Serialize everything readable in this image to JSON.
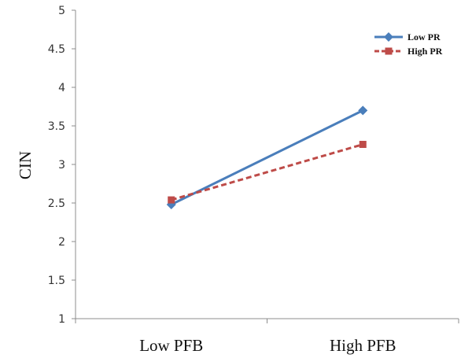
{
  "chart_data": {
    "type": "line",
    "title": "",
    "xlabel": "",
    "ylabel": "CIN",
    "categories": [
      "Low PFB",
      "High PFB"
    ],
    "ylim": [
      1,
      5
    ],
    "yticks": [
      1,
      1.5,
      2,
      2.5,
      3,
      3.5,
      4,
      4.5,
      5
    ],
    "ytick_labels": [
      "1",
      "1.5",
      "2",
      "2.5",
      "3",
      "3.5",
      "4",
      "4.5",
      "5"
    ],
    "grid": false,
    "legend_position": "top-right",
    "series": [
      {
        "name": "Low PR",
        "values": [
          2.48,
          3.7
        ],
        "color": "#4A7EBB",
        "line_style": "solid",
        "marker": "diamond"
      },
      {
        "name": "High PR",
        "values": [
          2.54,
          3.26
        ],
        "color": "#BE4B48",
        "line_style": "dashed",
        "marker": "square"
      }
    ]
  }
}
